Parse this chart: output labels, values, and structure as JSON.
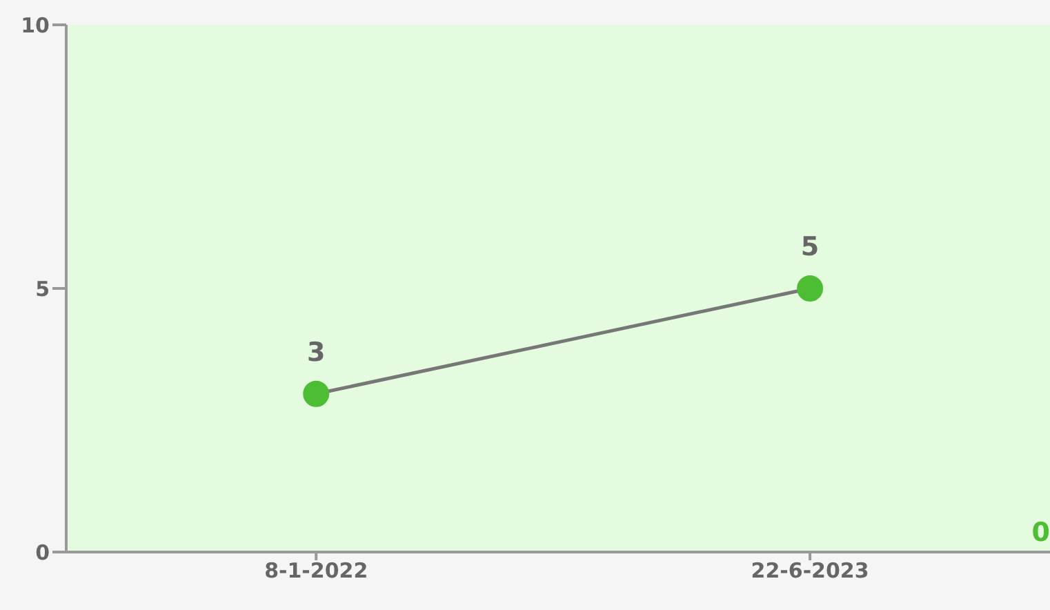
{
  "chart_data": {
    "type": "line",
    "categories": [
      "8-1-2022",
      "22-6-2023"
    ],
    "series": [
      {
        "color": "#4dbd33",
        "values": [
          3,
          5
        ]
      }
    ],
    "ylim": [
      0,
      10
    ],
    "yticks": [
      0,
      5,
      10
    ],
    "grid": false,
    "marker": "circle",
    "line_style": "solid",
    "data_labels": true,
    "annotations": [
      "0"
    ]
  }
}
